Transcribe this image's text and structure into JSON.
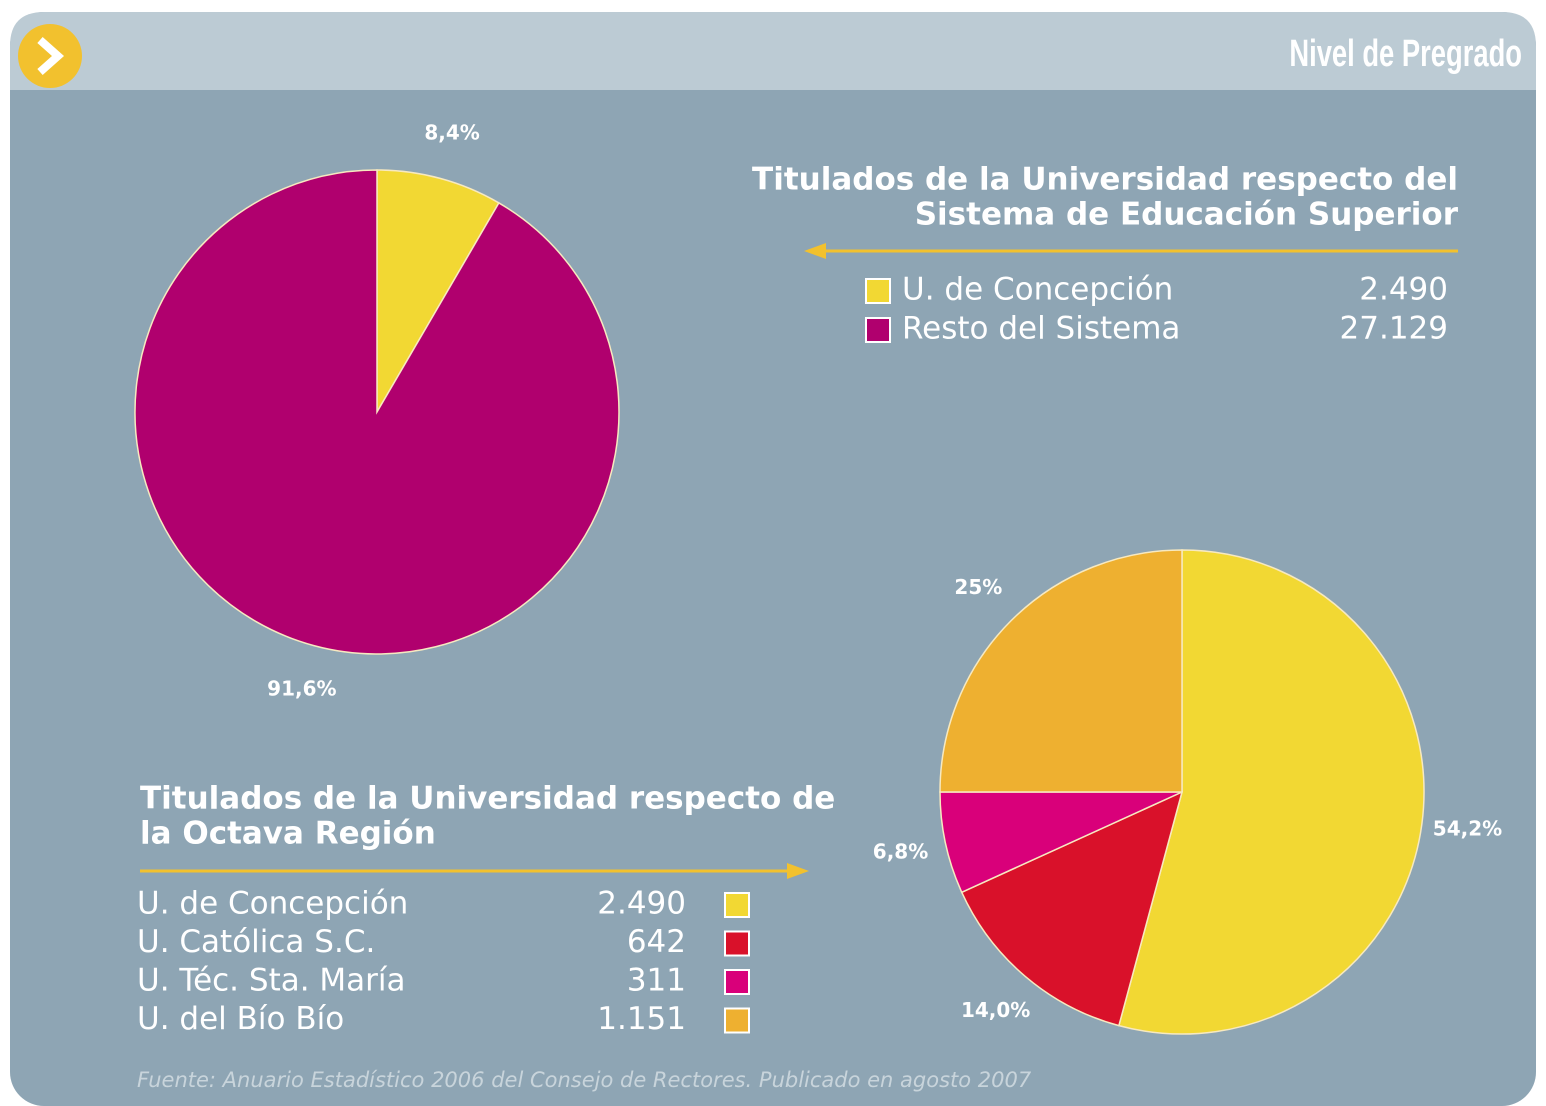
{
  "header": {
    "title": "Nivel de Pregrado"
  },
  "chart_data": [
    {
      "type": "pie",
      "title": [
        "Titulados de la Universidad respecto del",
        "Sistema de Educación Superior"
      ],
      "categories": [
        "U. de Concepción",
        "Resto del Sistema"
      ],
      "values": [
        8.4,
        91.6
      ],
      "value_labels": [
        "8,4%",
        "91,6%"
      ],
      "count_labels": [
        "2.490",
        "27.129"
      ],
      "colors": [
        "#f2d833",
        "#b0006e"
      ]
    },
    {
      "type": "pie",
      "title": [
        "Titulados de la Universidad respecto de",
        "la Octava Región"
      ],
      "categories": [
        "U. de Concepción",
        "U. Católica S.C.",
        "U. Téc. Sta. María",
        "U. del Bío Bío"
      ],
      "values": [
        54.2,
        14.0,
        6.8,
        25
      ],
      "value_labels": [
        "54,2%",
        "14,0%",
        "6,8%",
        "25%"
      ],
      "count_labels": [
        "2.490",
        "642",
        "311",
        "1.151"
      ],
      "colors": [
        "#f2d833",
        "#d9112a",
        "#d9007a",
        "#eeb030"
      ]
    }
  ],
  "source": "Fuente: Anuario Estadístico 2006 del Consejo de Rectores. Publicado en agosto 2007"
}
